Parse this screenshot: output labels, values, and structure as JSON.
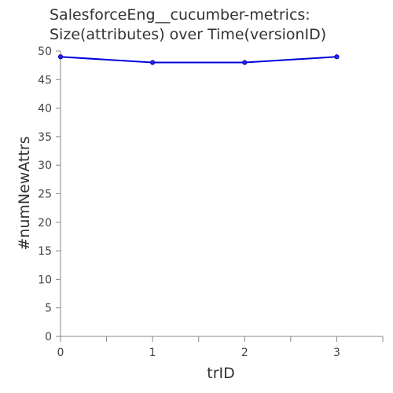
{
  "chart_data": {
    "type": "line",
    "title_lines": [
      "SalesforceEng__cucumber-metrics:",
      "Size(attributes) over Time(versionID)"
    ],
    "xlabel": "trID",
    "ylabel": "#numNewAttrs",
    "x": [
      0,
      1,
      2,
      3
    ],
    "series": [
      {
        "values": [
          49,
          48,
          48,
          49
        ],
        "color": "#0000dd"
      }
    ],
    "xlim": [
      0,
      3.5
    ],
    "ylim": [
      0,
      50
    ],
    "x_ticks": [
      0,
      1,
      2,
      3
    ],
    "x_minor_ticks": [
      0.5,
      1.5,
      2.5,
      3.5
    ],
    "y_ticks": [
      0,
      5,
      10,
      15,
      20,
      25,
      30,
      35,
      40,
      45,
      50
    ],
    "grid": false,
    "legend": "none"
  }
}
